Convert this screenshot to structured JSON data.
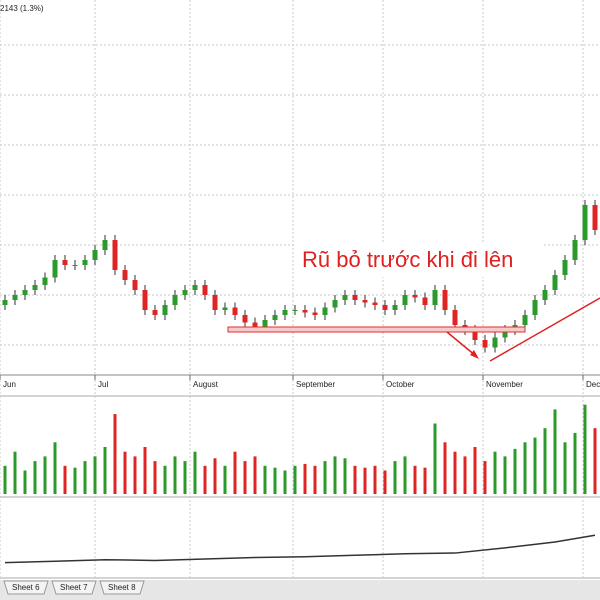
{
  "header": {
    "quote": "2143 (1.3%)"
  },
  "chart_data": {
    "type": "candlestick",
    "annotation": "Rũ bỏ trước khi đi lên",
    "open": [
      19,
      20,
      21,
      22,
      23,
      24.5,
      28,
      27,
      27,
      28,
      30,
      32,
      26,
      24,
      22,
      18,
      17,
      19,
      21,
      22,
      23,
      21,
      18,
      18.5,
      17,
      15.5,
      14.5,
      16,
      17,
      18,
      18,
      17.5,
      17,
      18.5,
      20,
      21,
      20,
      19.5,
      19,
      18,
      19,
      21,
      20.5,
      19,
      22,
      18,
      15,
      14,
      12,
      10.5,
      12.5,
      14,
      15,
      17,
      20,
      22,
      25,
      28,
      32,
      39
    ],
    "high": [
      21,
      22,
      23,
      24,
      25.5,
      29,
      29,
      28,
      29,
      31,
      33,
      33,
      27,
      25,
      23,
      19,
      20,
      22,
      23,
      24,
      24,
      22,
      19.5,
      19.5,
      18,
      16.5,
      17,
      18,
      19,
      19,
      19,
      18.5,
      19.5,
      21,
      22,
      22,
      21,
      20.5,
      20,
      20,
      22,
      22,
      21.5,
      23,
      23,
      19,
      16,
      15,
      13,
      13.5,
      15,
      16,
      18,
      21,
      23,
      26,
      29,
      33,
      40,
      40
    ],
    "low": [
      18,
      19,
      20,
      21,
      22,
      23.5,
      26,
      26,
      26,
      27,
      29,
      25,
      23,
      21,
      17,
      16,
      16,
      18,
      20,
      21,
      20,
      17,
      17,
      16,
      14.5,
      13.5,
      13.5,
      15,
      16,
      17,
      16.5,
      16,
      16,
      17.5,
      19,
      19,
      18.5,
      18,
      17,
      17,
      18,
      19.5,
      18,
      18,
      17,
      14,
      13,
      11,
      9.5,
      9.5,
      11.5,
      13,
      14,
      16,
      19,
      21,
      24,
      27,
      31,
      33
    ],
    "close": [
      20,
      21,
      22,
      23,
      24.5,
      28,
      27,
      27,
      28,
      30,
      32,
      26,
      24,
      22,
      18,
      17,
      19,
      21,
      22,
      23,
      21,
      18,
      18.5,
      17,
      15.5,
      14.5,
      16,
      17,
      18,
      18,
      17.5,
      17,
      18.5,
      20,
      21,
      20,
      19.5,
      19,
      18,
      19,
      21,
      20.5,
      19,
      22,
      18,
      15,
      14,
      12,
      10.5,
      12.5,
      14,
      15,
      17,
      20,
      22,
      25,
      28,
      32,
      39,
      34
    ],
    "volume": [
      30,
      45,
      25,
      35,
      40,
      55,
      30,
      28,
      35,
      40,
      50,
      85,
      45,
      40,
      50,
      35,
      30,
      40,
      35,
      45,
      30,
      38,
      30,
      45,
      35,
      40,
      30,
      28,
      25,
      30,
      32,
      30,
      35,
      40,
      38,
      30,
      28,
      30,
      25,
      35,
      40,
      30,
      28,
      75,
      55,
      45,
      40,
      50,
      35,
      45,
      40,
      48,
      55,
      60,
      70,
      90,
      55,
      65,
      95,
      70
    ],
    "indicator": {
      "index": [
        0,
        5,
        10,
        15,
        20,
        25,
        30,
        35,
        40,
        45,
        50,
        55,
        59
      ],
      "values": [
        18,
        20,
        22,
        21,
        23,
        25,
        26,
        28,
        30,
        31,
        38,
        46,
        55
      ],
      "ylim": [
        0,
        100
      ]
    },
    "volume_ylim": [
      0,
      100
    ],
    "ylim": [
      5,
      80
    ],
    "yticks": [
      11,
      21,
      31,
      41,
      51,
      61,
      71
    ],
    "grid": true,
    "up_color": "#2a9a2a",
    "down_color": "#e02424",
    "month_ticks": [
      {
        "value": -0.5,
        "label": "Jun"
      },
      {
        "value": 9,
        "label": "Jul"
      },
      {
        "value": 18.5,
        "label": "August"
      },
      {
        "value": 28.8,
        "label": "September"
      },
      {
        "value": 37.8,
        "label": "October"
      },
      {
        "value": 47.8,
        "label": "November"
      },
      {
        "value": 57.8,
        "label": "December"
      }
    ]
  },
  "tabs": [
    "Sheet 6",
    "Sheet 7",
    "Sheet 8"
  ]
}
